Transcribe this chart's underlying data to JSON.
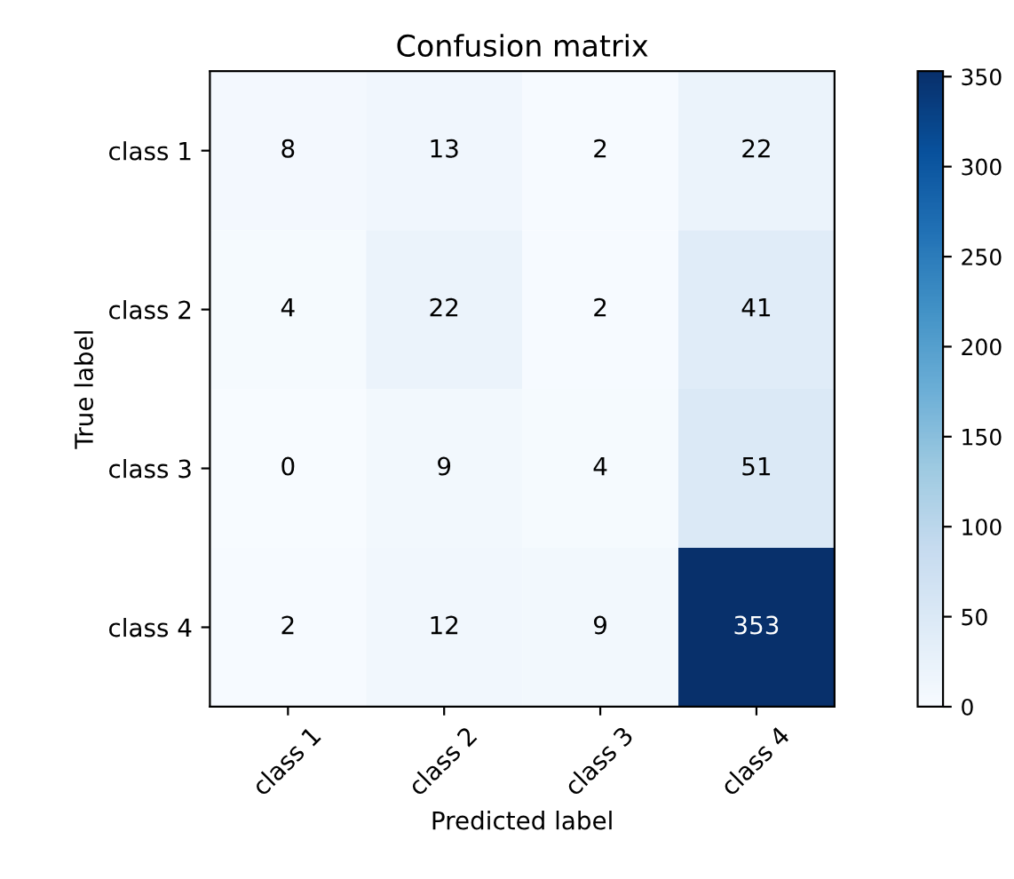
{
  "chart_data": {
    "type": "heatmap",
    "title": "Confusion matrix",
    "xlabel": "Predicted label",
    "ylabel": "True label",
    "categories": [
      "class 1",
      "class 2",
      "class 3",
      "class 4"
    ],
    "y_categories": [
      "class 1",
      "class 2",
      "class 3",
      "class 4"
    ],
    "cells": [
      [
        8,
        13,
        2,
        22
      ],
      [
        4,
        22,
        2,
        41
      ],
      [
        0,
        9,
        4,
        51
      ],
      [
        2,
        12,
        9,
        353
      ]
    ],
    "data_labels": true,
    "clim": [
      0,
      353
    ],
    "cticks": [
      0,
      50,
      100,
      150,
      200,
      250,
      300,
      350
    ]
  }
}
